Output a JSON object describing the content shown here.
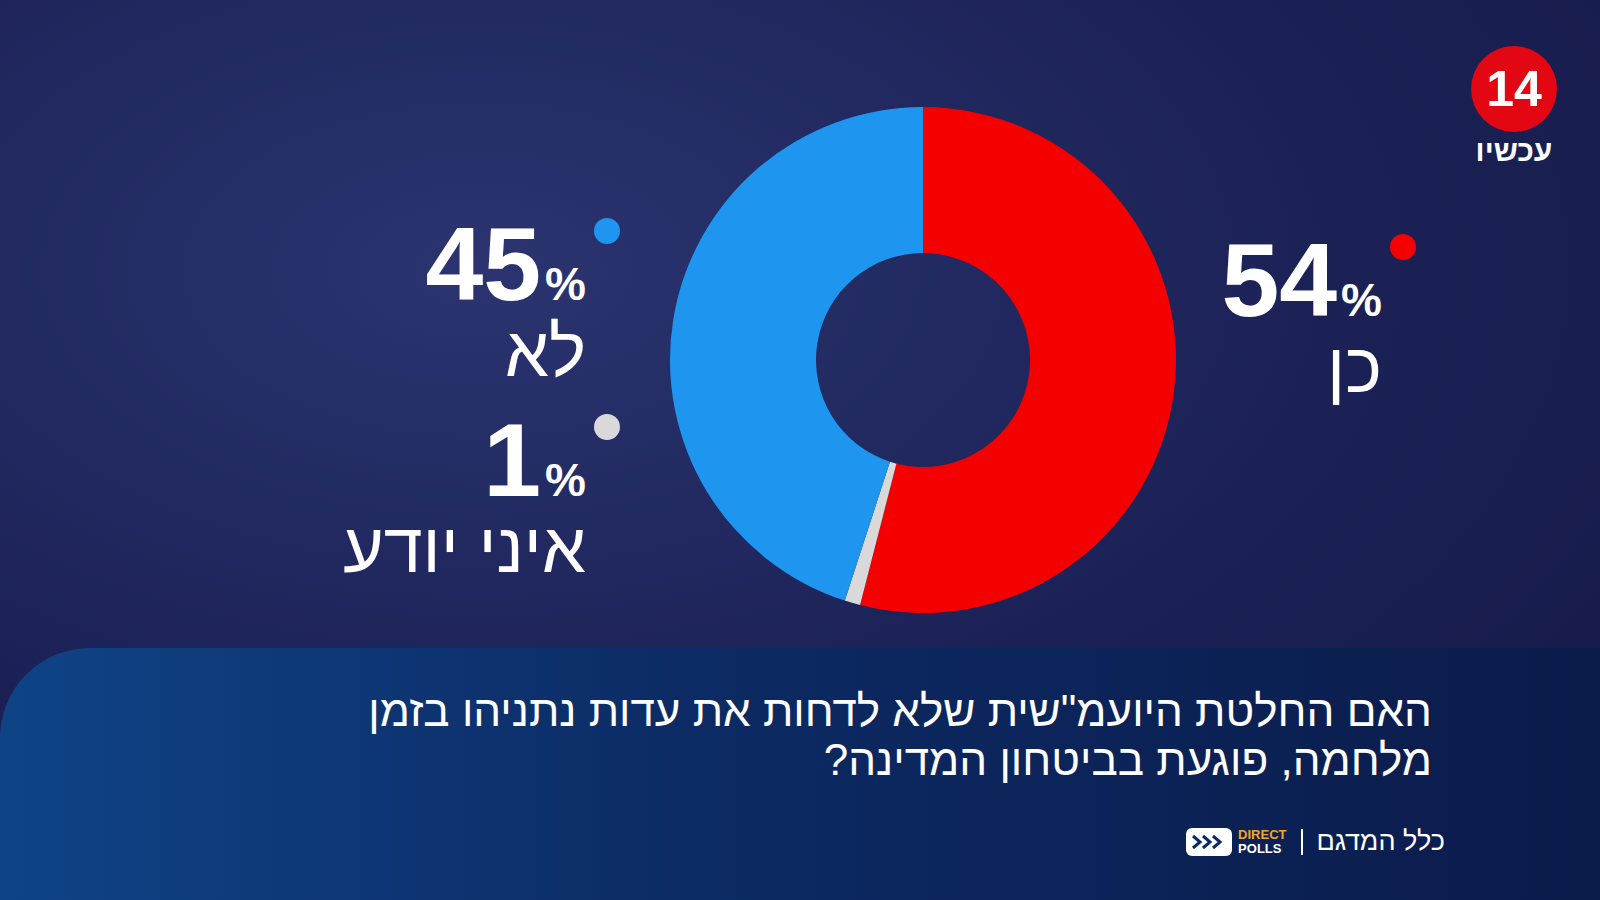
{
  "chart_data": {
    "type": "pie",
    "title": "האם החלטת היועמ\"שית שלא לדחות את עדות נתניהו בזמן מלחמה, פוגעת בביטחון המדינה?",
    "categories": [
      "כן",
      "איני יודע",
      "לא"
    ],
    "values": [
      54,
      1,
      45
    ],
    "value_labels": [
      "54%",
      "1%",
      "45%"
    ],
    "colors": [
      "#f50000",
      "#d9d9d9",
      "#1e96f0"
    ],
    "data_labels": true,
    "annotations": {
      "channel": "14",
      "channel_sub": "עכשיו",
      "source": "כלל המדגם",
      "pollster": [
        "DIRECT",
        "POLLS"
      ]
    }
  }
}
